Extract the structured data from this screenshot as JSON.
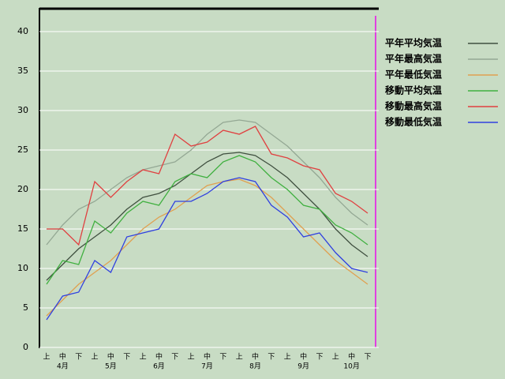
{
  "chart_data": {
    "type": "line",
    "categories": [
      "上",
      "中",
      "下",
      "上",
      "中",
      "下",
      "上",
      "中",
      "下",
      "上",
      "中",
      "下",
      "上",
      "中",
      "下",
      "上",
      "中",
      "下",
      "上",
      "中",
      "下"
    ],
    "months": [
      "4月",
      "5月",
      "6月",
      "7月",
      "8月",
      "9月",
      "10月"
    ],
    "ylim": [
      0,
      43
    ],
    "yticks": [
      0,
      5,
      10,
      15,
      20,
      25,
      30,
      35,
      40
    ],
    "grid": true,
    "legend": "right",
    "series": [
      {
        "name": "平年平均気温",
        "color": "#405040",
        "values": [
          8.5,
          10.5,
          12.5,
          14,
          15.5,
          17.5,
          19,
          19.5,
          20.5,
          22,
          23.5,
          24.5,
          24.7,
          24.3,
          23,
          21.5,
          19.5,
          17.5,
          15,
          13,
          11.5
        ]
      },
      {
        "name": "平年最高気温",
        "color": "#94a894",
        "values": [
          13,
          15.5,
          17.5,
          18.5,
          20,
          21.5,
          22.5,
          23,
          23.5,
          25,
          27,
          28.5,
          28.8,
          28.5,
          27,
          25.5,
          23.5,
          21.5,
          19,
          17,
          15.5
        ]
      },
      {
        "name": "平年最低気温",
        "color": "#e0a050",
        "values": [
          4,
          6,
          8,
          9.5,
          11,
          13,
          15,
          16.5,
          17.5,
          19,
          20.5,
          21,
          21.3,
          20.5,
          19,
          17,
          15,
          13,
          11,
          9.5,
          8
        ]
      },
      {
        "name": "移動平均気温",
        "color": "#40b040",
        "values": [
          8,
          11,
          10.5,
          16,
          14.5,
          17,
          18.5,
          18,
          21,
          22,
          21.5,
          23.5,
          24.3,
          23.5,
          21.5,
          20,
          18,
          17.5,
          15.5,
          14.5,
          13
        ]
      },
      {
        "name": "移動最高気温",
        "color": "#e04040",
        "values": [
          15,
          15,
          13,
          21,
          19,
          21,
          22.5,
          22,
          27,
          25.5,
          26,
          27.5,
          27,
          28,
          24.5,
          24,
          23,
          22.5,
          19.5,
          18.5,
          17
        ]
      },
      {
        "name": "移動最低気温",
        "color": "#3040e0",
        "values": [
          3.5,
          6.5,
          7,
          11,
          9.5,
          14,
          14.5,
          15,
          18.5,
          18.5,
          19.5,
          21,
          21.5,
          21,
          18,
          16.5,
          14,
          14.5,
          12,
          10,
          9.5
        ]
      }
    ]
  }
}
